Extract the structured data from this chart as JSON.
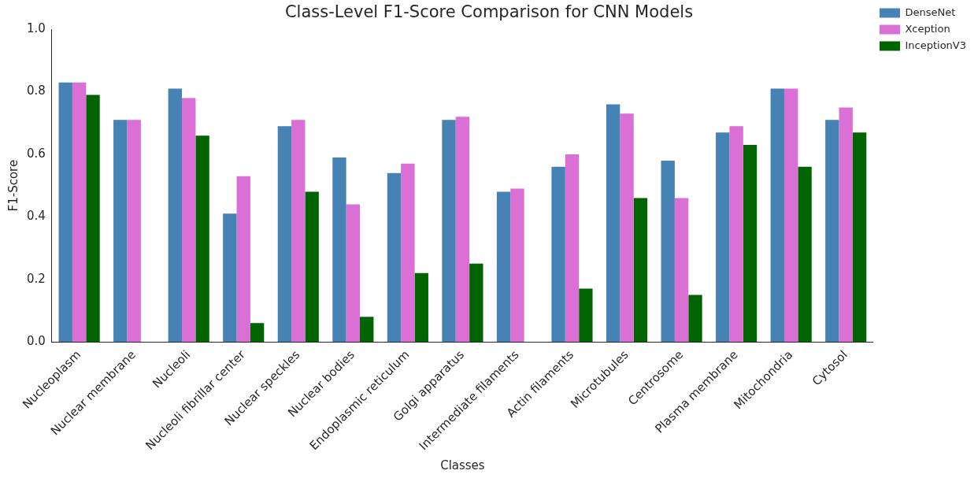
{
  "chart_data": {
    "type": "bar",
    "title": "Class-Level F1-Score Comparison for CNN Models",
    "xlabel": "Classes",
    "ylabel": "F1-Score",
    "categories": [
      "Nucleoplasm",
      "Nuclear membrane",
      "Nucleoli",
      "Nucleoli fibrillar center",
      "Nuclear speckles",
      "Nuclear bodies",
      "Endoplasmic reticulum",
      "Golgi apparatus",
      "Intermediate filaments",
      "Actin filaments",
      "Microtubules",
      "Centrosome",
      "Plasma membrane",
      "Mitochondria",
      "Cytosol"
    ],
    "series": [
      {
        "name": "DenseNet",
        "color": "#4682b4",
        "values": [
          0.83,
          0.71,
          0.81,
          0.41,
          0.69,
          0.59,
          0.54,
          0.71,
          0.48,
          0.56,
          0.76,
          0.58,
          0.67,
          0.81,
          0.71
        ]
      },
      {
        "name": "Xception",
        "color": "#da70d6",
        "values": [
          0.83,
          0.71,
          0.78,
          0.53,
          0.71,
          0.44,
          0.57,
          0.72,
          0.49,
          0.6,
          0.73,
          0.46,
          0.69,
          0.81,
          0.75
        ]
      },
      {
        "name": "InceptionV3",
        "color": "#006400",
        "values": [
          0.79,
          0,
          0.66,
          0.06,
          0.48,
          0.08,
          0.22,
          0.25,
          0,
          0.17,
          0.46,
          0.15,
          0.63,
          0.56,
          0.67
        ]
      }
    ],
    "ylim": [
      0,
      1
    ],
    "yticks": [
      {
        "value": 0,
        "label": "0.0"
      },
      {
        "value": 0.2,
        "label": "0.2"
      },
      {
        "value": 0.4,
        "label": "0.4"
      },
      {
        "value": 0.6,
        "label": "0.6"
      },
      {
        "value": 0.8,
        "label": "0.8"
      },
      {
        "value": 1,
        "label": "1.0"
      }
    ],
    "grid": false,
    "legend": "top right"
  }
}
